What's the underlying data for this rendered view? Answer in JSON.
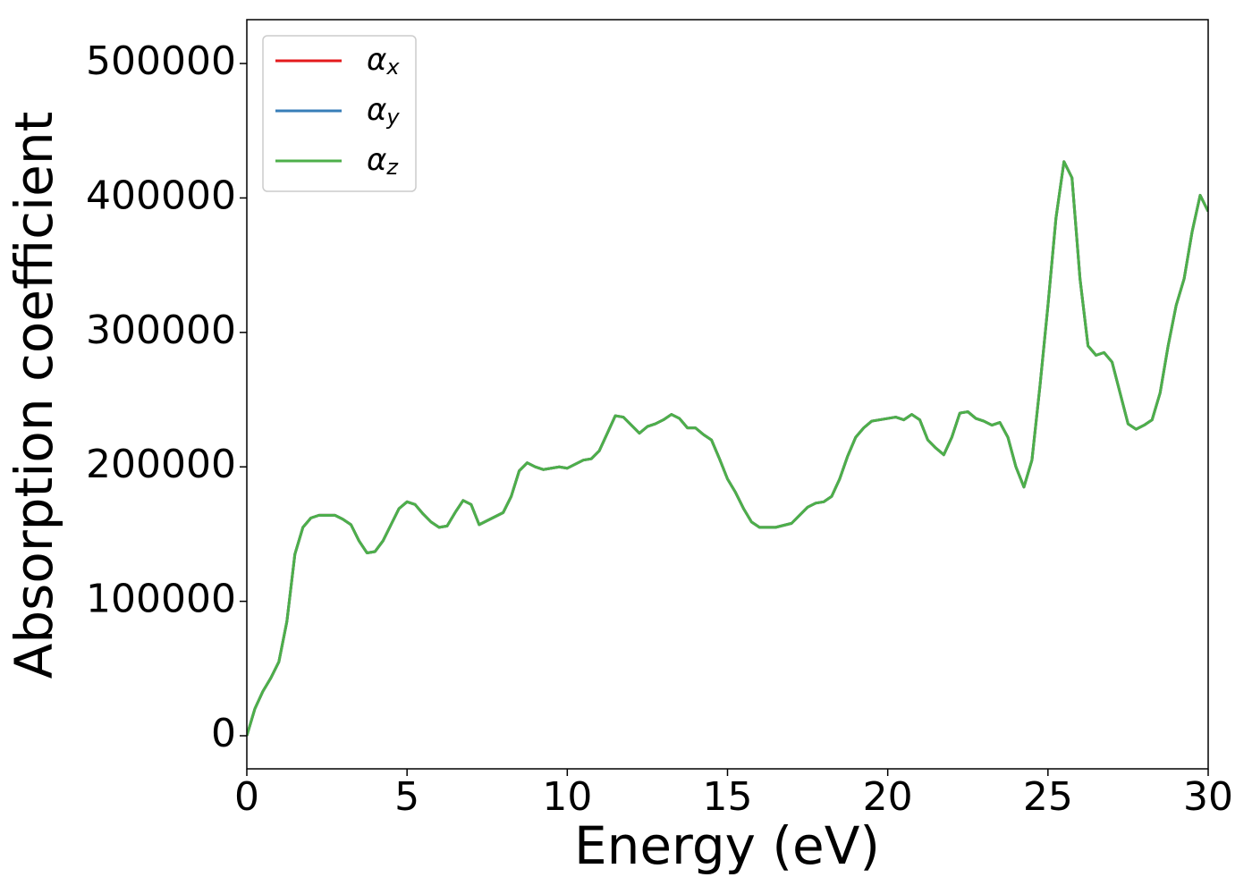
{
  "chart_data": {
    "type": "line",
    "xlabel": "Energy (eV)",
    "ylabel": "Absorption coefficient",
    "x": [
      0,
      0.25,
      0.5,
      0.75,
      1,
      1.25,
      1.5,
      1.75,
      2,
      2.25,
      2.5,
      2.75,
      3,
      3.25,
      3.5,
      3.75,
      4,
      4.25,
      4.5,
      4.75,
      5,
      5.25,
      5.5,
      5.75,
      6,
      6.25,
      6.5,
      6.75,
      7,
      7.25,
      7.5,
      7.75,
      8,
      8.25,
      8.5,
      8.75,
      9,
      9.25,
      9.5,
      9.75,
      10,
      10.25,
      10.5,
      10.75,
      11,
      11.25,
      11.5,
      11.75,
      12,
      12.25,
      12.5,
      12.75,
      13,
      13.25,
      13.5,
      13.75,
      14,
      14.25,
      14.5,
      14.75,
      15,
      15.25,
      15.5,
      15.75,
      16,
      16.5,
      17,
      17.25,
      17.5,
      17.75,
      18,
      18.25,
      18.5,
      18.75,
      19,
      19.25,
      19.5,
      19.75,
      20,
      20.25,
      20.5,
      20.75,
      21,
      21.25,
      21.5,
      21.75,
      22,
      22.25,
      22.5,
      22.75,
      23,
      23.25,
      23.5,
      23.75,
      24,
      24.25,
      24.5,
      24.75,
      25,
      25.25,
      25.5,
      25.75,
      26,
      26.25,
      26.5,
      26.75,
      27,
      27.25,
      27.5,
      27.75,
      28,
      28.25,
      28.5,
      28.75,
      29,
      29.25,
      29.5,
      29.75,
      30
    ],
    "series": [
      {
        "name": "αx",
        "color": "#e41a1c",
        "values": [
          0,
          20000,
          33000,
          43000,
          55000,
          85000,
          135000,
          155000,
          162000,
          164000,
          164000,
          164000,
          161000,
          157000,
          145000,
          136000,
          137000,
          145000,
          157000,
          169000,
          174000,
          172000,
          165000,
          159000,
          155000,
          156000,
          166000,
          175000,
          172000,
          157000,
          160000,
          163000,
          166000,
          178000,
          197000,
          203000,
          200000,
          198000,
          199000,
          200000,
          199000,
          202000,
          205000,
          206000,
          212000,
          225000,
          238000,
          237000,
          231000,
          225000,
          230000,
          232000,
          235000,
          239000,
          236000,
          229000,
          229000,
          224000,
          220000,
          206000,
          191000,
          181000,
          169000,
          159000,
          155000,
          155000,
          158000,
          164000,
          170000,
          173000,
          174000,
          178000,
          191000,
          208000,
          222000,
          229000,
          234000,
          235000,
          236000,
          237000,
          235000,
          239000,
          235000,
          220000,
          214000,
          209000,
          222000,
          240000,
          241000,
          236000,
          234000,
          231000,
          233000,
          222000,
          200000,
          185000,
          205000,
          260000,
          320000,
          385000,
          427000,
          415000,
          340000,
          290000,
          283000,
          285000,
          278000,
          255000,
          232000,
          228000,
          231000,
          235000,
          255000,
          290000,
          320000,
          340000,
          375000,
          402000,
          390000
        ]
      },
      {
        "name": "αy",
        "color": "#377eb8",
        "values": [
          0,
          20000,
          33000,
          43000,
          55000,
          85000,
          135000,
          155000,
          162000,
          164000,
          164000,
          164000,
          161000,
          157000,
          145000,
          136000,
          137000,
          145000,
          157000,
          169000,
          174000,
          172000,
          165000,
          159000,
          155000,
          156000,
          166000,
          175000,
          172000,
          157000,
          160000,
          163000,
          166000,
          178000,
          197000,
          203000,
          200000,
          198000,
          199000,
          200000,
          199000,
          202000,
          205000,
          206000,
          212000,
          225000,
          238000,
          237000,
          231000,
          225000,
          230000,
          232000,
          235000,
          239000,
          236000,
          229000,
          229000,
          224000,
          220000,
          206000,
          191000,
          181000,
          169000,
          159000,
          155000,
          155000,
          158000,
          164000,
          170000,
          173000,
          174000,
          178000,
          191000,
          208000,
          222000,
          229000,
          234000,
          235000,
          236000,
          237000,
          235000,
          239000,
          235000,
          220000,
          214000,
          209000,
          222000,
          240000,
          241000,
          236000,
          234000,
          231000,
          233000,
          222000,
          200000,
          185000,
          205000,
          260000,
          320000,
          385000,
          427000,
          415000,
          340000,
          290000,
          283000,
          285000,
          278000,
          255000,
          232000,
          228000,
          231000,
          235000,
          255000,
          290000,
          320000,
          340000,
          375000,
          402000,
          390000
        ]
      },
      {
        "name": "αz",
        "color": "#4daf4a",
        "values": [
          0,
          20000,
          33000,
          43000,
          55000,
          85000,
          135000,
          155000,
          162000,
          164000,
          164000,
          164000,
          161000,
          157000,
          145000,
          136000,
          137000,
          145000,
          157000,
          169000,
          174000,
          172000,
          165000,
          159000,
          155000,
          156000,
          166000,
          175000,
          172000,
          157000,
          160000,
          163000,
          166000,
          178000,
          197000,
          203000,
          200000,
          198000,
          199000,
          200000,
          199000,
          202000,
          205000,
          206000,
          212000,
          225000,
          238000,
          237000,
          231000,
          225000,
          230000,
          232000,
          235000,
          239000,
          236000,
          229000,
          229000,
          224000,
          220000,
          206000,
          191000,
          181000,
          169000,
          159000,
          155000,
          155000,
          158000,
          164000,
          170000,
          173000,
          174000,
          178000,
          191000,
          208000,
          222000,
          229000,
          234000,
          235000,
          236000,
          237000,
          235000,
          239000,
          235000,
          220000,
          214000,
          209000,
          222000,
          240000,
          241000,
          236000,
          234000,
          231000,
          233000,
          222000,
          200000,
          185000,
          205000,
          260000,
          320000,
          385000,
          427000,
          415000,
          340000,
          290000,
          283000,
          285000,
          278000,
          255000,
          232000,
          228000,
          231000,
          235000,
          255000,
          290000,
          320000,
          340000,
          375000,
          402000,
          390000
        ]
      }
    ],
    "xlim": [
      0,
      30
    ],
    "xticks": [
      0,
      5,
      10,
      15,
      20,
      25,
      30
    ],
    "ylim": [
      -24600,
      532600
    ],
    "yticks": [
      0,
      100000,
      200000,
      300000,
      400000,
      500000
    ],
    "legend": "upper left"
  }
}
